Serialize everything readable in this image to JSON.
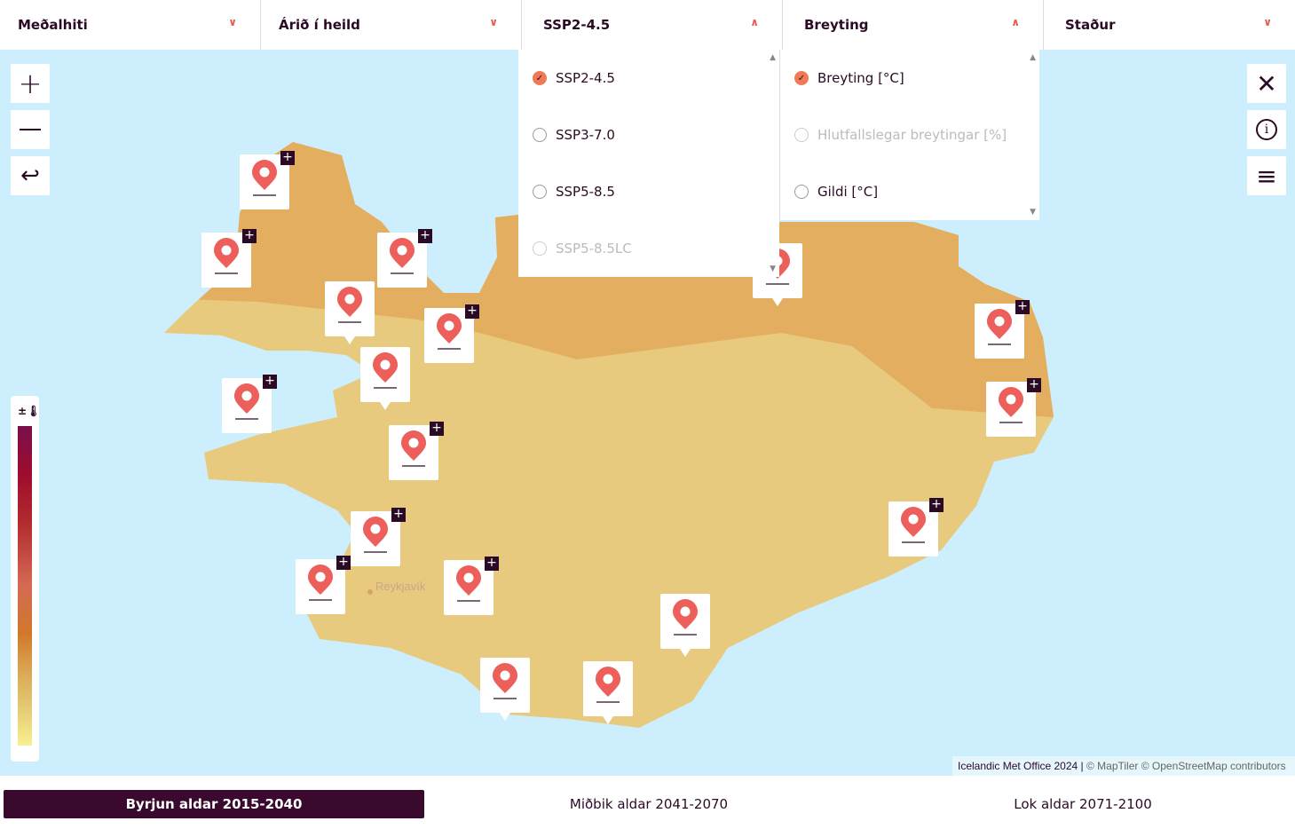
{
  "topbar": {
    "variable": "Meðalhiti",
    "season": "Árið í heild",
    "scenario": "SSP2-4.5",
    "measure": "Breyting",
    "location": "Staður"
  },
  "scenario_menu": [
    {
      "label": "SSP2-4.5",
      "selected": true
    },
    {
      "label": "SSP3-7.0",
      "selected": false
    },
    {
      "label": "SSP5-8.5",
      "selected": false
    },
    {
      "label": "SSP5-8.5LC",
      "selected": false,
      "disabled": true
    }
  ],
  "measure_menu": [
    {
      "label": "Breyting [°C]",
      "selected": true
    },
    {
      "label": "Hlutfallslegar breytingar [%]",
      "selected": false,
      "disabled": true
    },
    {
      "label": "Gildi [°C]",
      "selected": false
    }
  ],
  "map": {
    "city_label": "Reykjavík",
    "legend_icon": "plus-minus-thermometer-icon",
    "legend_label": "±",
    "colors": {
      "north": "#e3ae5f",
      "south": "#e8ca7f",
      "sea": "#cdeefc",
      "accent": "#f07a55",
      "brand": "#3a0a2e"
    }
  },
  "attribution": {
    "owner": "Icelandic Met Office 2024 |",
    "maptiler": "© MapTiler © OpenStreetMap contributors"
  },
  "periods": [
    {
      "label": "Byrjun aldar 2015-2040",
      "active": true
    },
    {
      "label": "Miðbik aldar 2041-2070",
      "active": false
    },
    {
      "label": "Lok aldar 2071-2100",
      "active": false
    }
  ]
}
